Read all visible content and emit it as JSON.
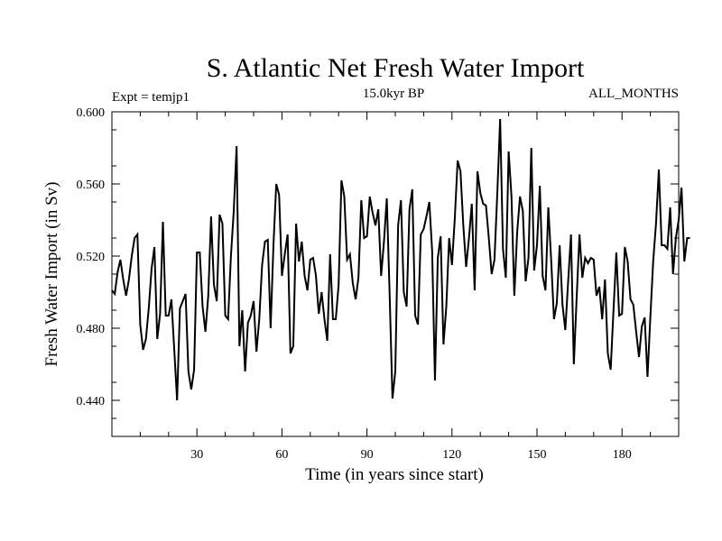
{
  "chart_data": {
    "type": "line",
    "title": "S. Atlantic Net Fresh Water Import",
    "subtitle_left": "Expt = temjp1",
    "subtitle_center": "15.0kyr BP",
    "subtitle_right": "ALL_MONTHS",
    "xlabel": "Time (in years since start)",
    "ylabel": "Fresh Water Import (in Sv)",
    "xlim": [
      0,
      200
    ],
    "ylim": [
      0.42,
      0.6
    ],
    "x_ticks": [
      30,
      60,
      90,
      120,
      150,
      180
    ],
    "y_ticks": [
      "0.440",
      "0.480",
      "0.520",
      "0.560",
      "0.600"
    ],
    "series": [
      {
        "name": "Net Fresh Water Import",
        "x_start": 0,
        "x_step": 1,
        "values": [
          0.501,
          0.499,
          0.511,
          0.518,
          0.507,
          0.498,
          0.507,
          0.52,
          0.53,
          0.532,
          0.482,
          0.468,
          0.474,
          0.491,
          0.513,
          0.525,
          0.474,
          0.488,
          0.539,
          0.487,
          0.487,
          0.496,
          0.468,
          0.44,
          0.491,
          0.495,
          0.499,
          0.456,
          0.446,
          0.457,
          0.522,
          0.522,
          0.492,
          0.478,
          0.498,
          0.542,
          0.504,
          0.495,
          0.543,
          0.538,
          0.487,
          0.485,
          0.52,
          0.545,
          0.581,
          0.47,
          0.49,
          0.456,
          0.483,
          0.487,
          0.495,
          0.467,
          0.485,
          0.515,
          0.528,
          0.529,
          0.48,
          0.526,
          0.56,
          0.554,
          0.509,
          0.521,
          0.532,
          0.466,
          0.47,
          0.538,
          0.517,
          0.528,
          0.509,
          0.501,
          0.518,
          0.519,
          0.509,
          0.488,
          0.5,
          0.485,
          0.473,
          0.521,
          0.485,
          0.485,
          0.504,
          0.562,
          0.553,
          0.518,
          0.521,
          0.505,
          0.496,
          0.508,
          0.551,
          0.53,
          0.531,
          0.553,
          0.544,
          0.537,
          0.546,
          0.509,
          0.528,
          0.552,
          0.499,
          0.441,
          0.456,
          0.537,
          0.551,
          0.5,
          0.492,
          0.546,
          0.557,
          0.487,
          0.482,
          0.532,
          0.535,
          0.542,
          0.55,
          0.523,
          0.451,
          0.519,
          0.531,
          0.471,
          0.492,
          0.53,
          0.515,
          0.541,
          0.573,
          0.567,
          0.537,
          0.514,
          0.53,
          0.549,
          0.501,
          0.567,
          0.555,
          0.549,
          0.548,
          0.53,
          0.51,
          0.518,
          0.555,
          0.596,
          0.524,
          0.508,
          0.578,
          0.553,
          0.498,
          0.533,
          0.553,
          0.545,
          0.506,
          0.519,
          0.58,
          0.512,
          0.526,
          0.559,
          0.509,
          0.501,
          0.547,
          0.518,
          0.485,
          0.494,
          0.526,
          0.493,
          0.479,
          0.506,
          0.532,
          0.46,
          0.497,
          0.532,
          0.508,
          0.519,
          0.516,
          0.519,
          0.518,
          0.498,
          0.503,
          0.485,
          0.507,
          0.466,
          0.457,
          0.49,
          0.522,
          0.487,
          0.488,
          0.525,
          0.517,
          0.496,
          0.493,
          0.478,
          0.464,
          0.481,
          0.486,
          0.453,
          0.486,
          0.517,
          0.538,
          0.568,
          0.526,
          0.526,
          0.524,
          0.547,
          0.51,
          0.53,
          0.54,
          0.558,
          0.517,
          0.53,
          0.53
        ]
      }
    ]
  }
}
